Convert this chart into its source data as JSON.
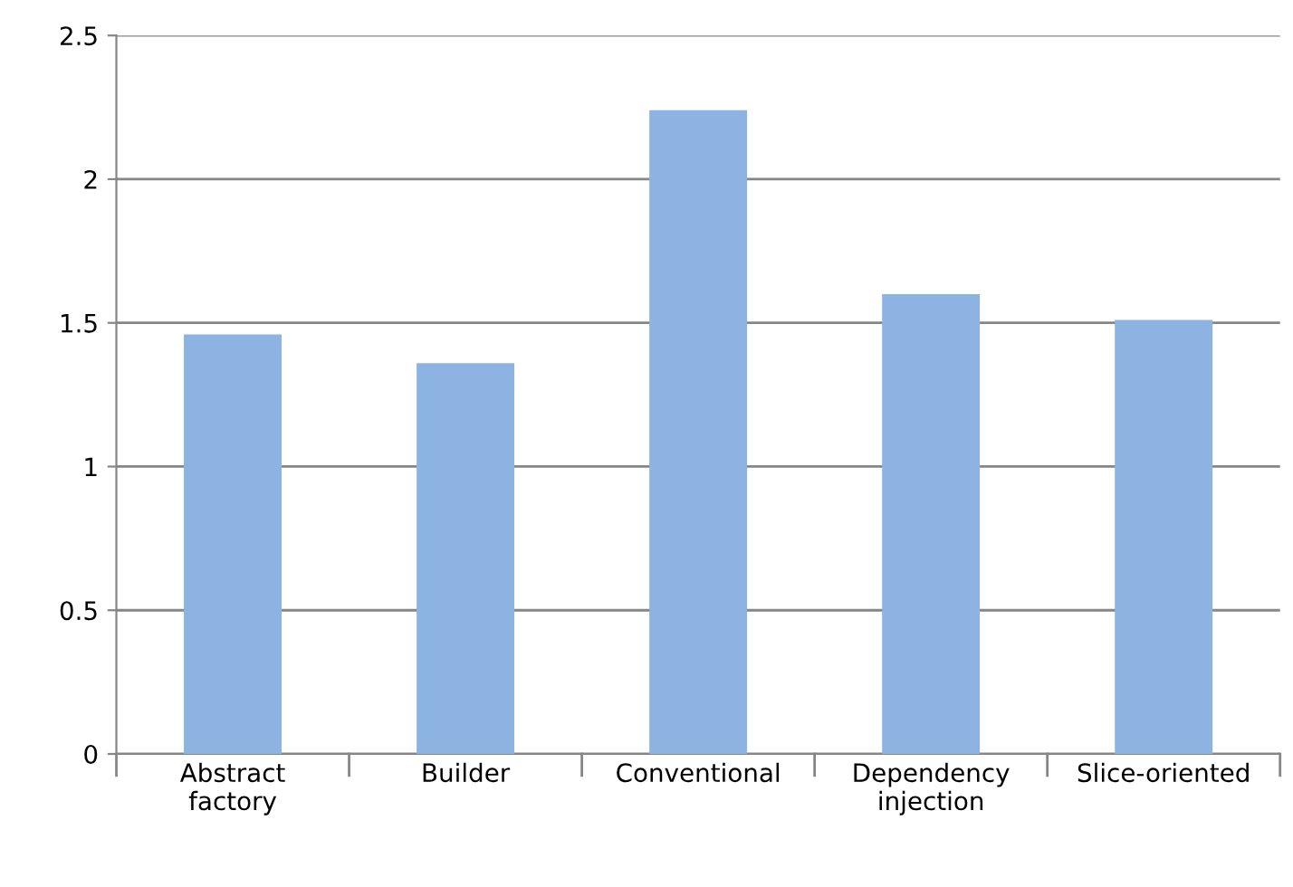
{
  "chart_data": {
    "type": "bar",
    "categories": [
      "Abstract\nfactory",
      "Builder",
      "Conventional",
      "Dependency\ninjection",
      "Slice-oriented"
    ],
    "values": [
      1.46,
      1.36,
      2.24,
      1.6,
      1.51
    ],
    "color": "#8db3e2",
    "ylim": [
      0,
      2.5
    ],
    "yticks": [
      0,
      {
        "value": 0.5,
        "label": "0.5"
      },
      1,
      {
        "value": 1.5,
        "label": "1.5"
      },
      2,
      {
        "value": 2.5,
        "label": "2.5"
      }
    ],
    "grid": "y",
    "legend": false
  }
}
